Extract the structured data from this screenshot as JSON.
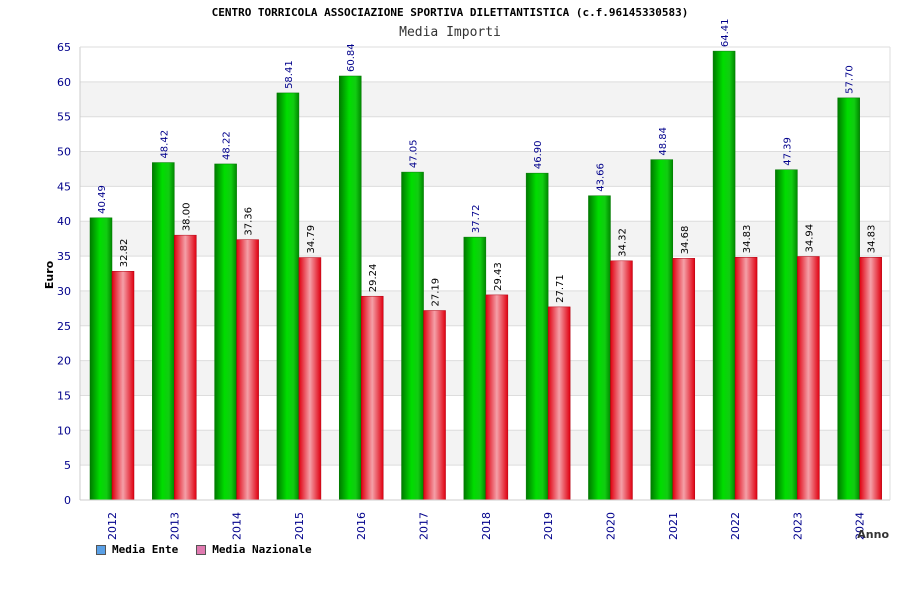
{
  "chart_data": {
    "type": "bar",
    "title": "CENTRO TORRICOLA ASSOCIAZIONE SPORTIVA DILETTANTISTICA (c.f.96145330583)",
    "subtitle": "Media Importi",
    "xlabel": "Anno",
    "ylabel": "Euro",
    "ylim": [
      0,
      65
    ],
    "yticks": [
      0,
      5,
      10,
      15,
      20,
      25,
      30,
      35,
      40,
      45,
      50,
      55,
      60,
      65
    ],
    "categories": [
      "2012",
      "2013",
      "2014",
      "2015",
      "2016",
      "2017",
      "2018",
      "2019",
      "2020",
      "2021",
      "2022",
      "2023",
      "2024"
    ],
    "series": [
      {
        "name": "Media Ente",
        "values": [
          40.49,
          48.42,
          48.22,
          58.41,
          60.84,
          47.05,
          37.72,
          46.9,
          43.66,
          48.84,
          64.41,
          47.39,
          57.7
        ],
        "labels": [
          "40.49",
          "48.42",
          "48.22",
          "58.41",
          "60.84",
          "47.05",
          "37.72",
          "46.90",
          "43.66",
          "48.84",
          "64.41",
          "47.39",
          "57.70"
        ],
        "color": "#00bb00",
        "legend_color": "#5aa0e6"
      },
      {
        "name": "Media Nazionale",
        "values": [
          32.82,
          38.0,
          37.36,
          34.79,
          29.24,
          27.19,
          29.43,
          27.71,
          34.32,
          34.68,
          34.83,
          34.94,
          34.83
        ],
        "labels": [
          "32.82",
          "38.00",
          "37.36",
          "34.79",
          "29.24",
          "27.19",
          "29.43",
          "27.71",
          "34.32",
          "34.68",
          "34.83",
          "34.94",
          "34.83"
        ],
        "color": "#e8182a",
        "legend_color": "#e07ab0"
      }
    ],
    "grid": true,
    "legend": "bottom-left"
  }
}
